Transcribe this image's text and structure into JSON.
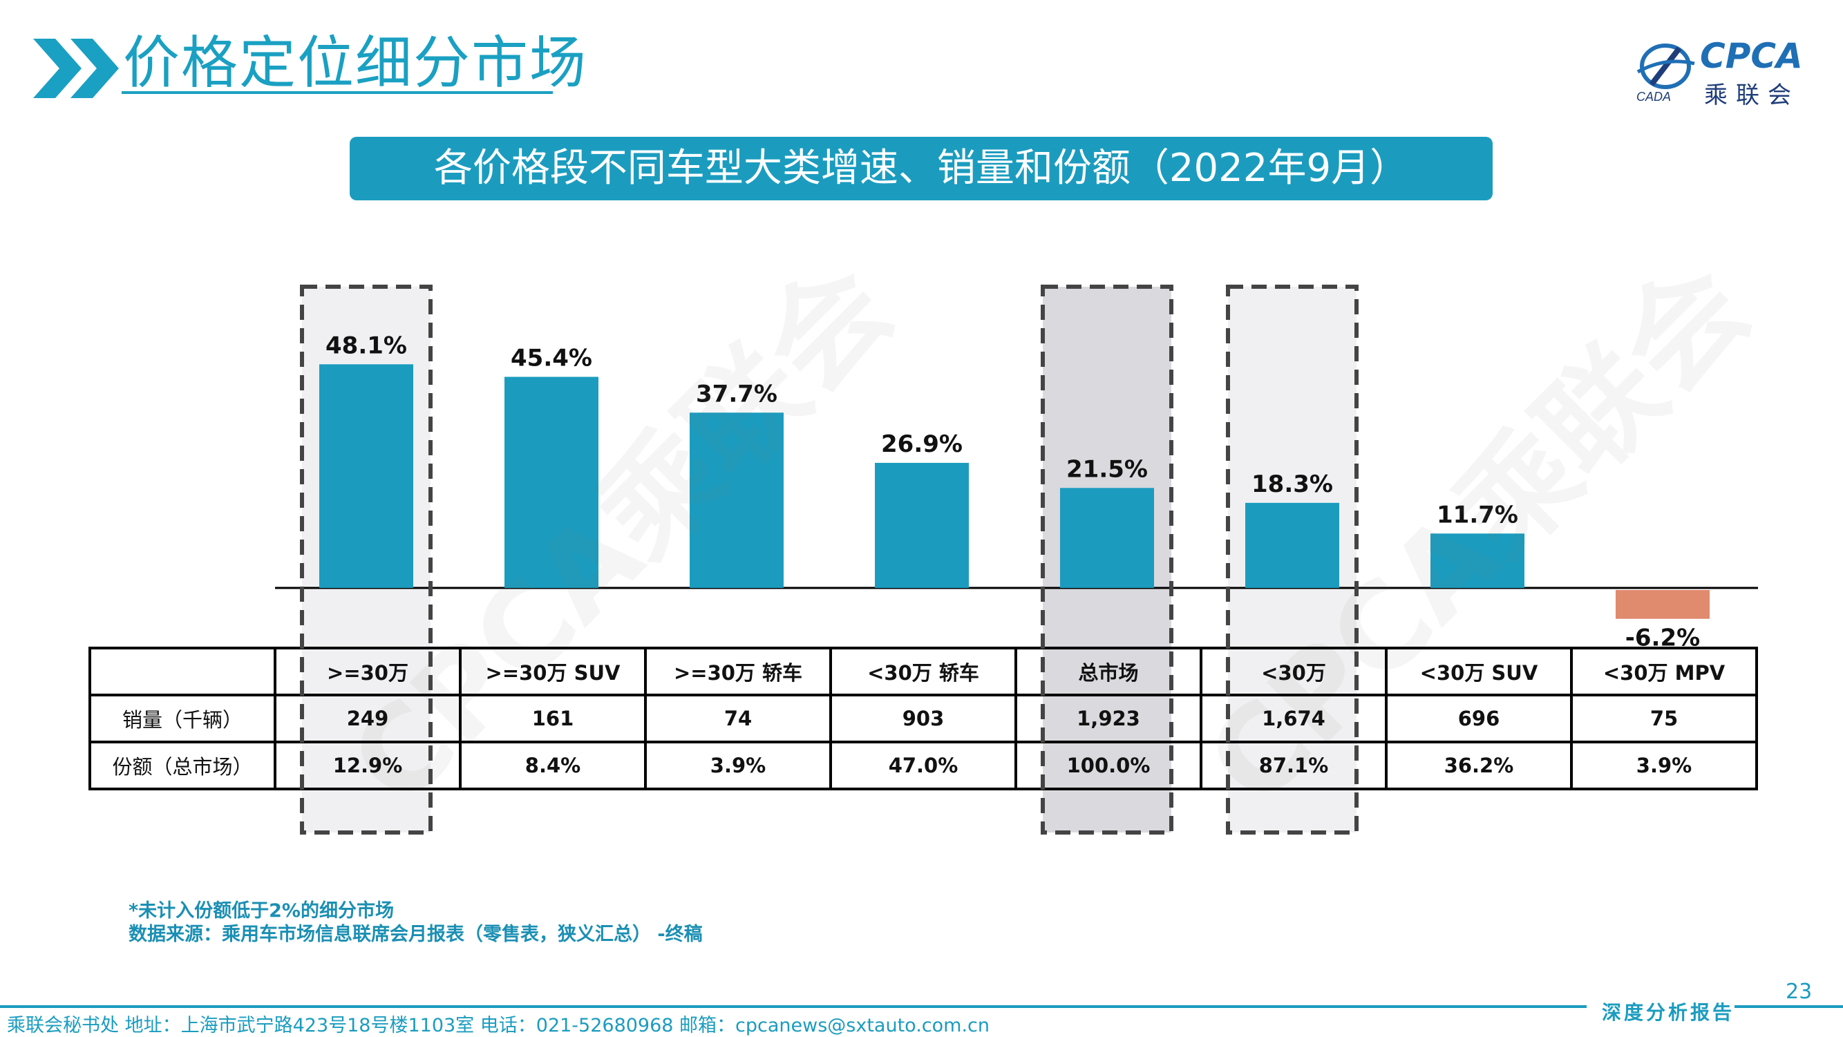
{
  "header": {
    "section_title": "价格定位细分市场",
    "logo_en": "CPCA",
    "logo_cn": "乘联会"
  },
  "banner": {
    "title": "各价格段不同车型大类增速、销量和份额（2022年9月）"
  },
  "watermark_text": "CPCA乘联会",
  "chart_data": {
    "type": "bar",
    "categories": [
      ">=30万",
      ">=30万 SUV",
      ">=30万 轿车",
      "<30万 轿车",
      "总市场",
      "<30万",
      "<30万 SUV",
      "<30万 MPV"
    ],
    "values": [
      48.1,
      45.4,
      37.7,
      26.9,
      21.5,
      18.3,
      11.7,
      -6.2
    ],
    "value_labels": [
      "48.1%",
      "45.4%",
      "37.7%",
      "26.9%",
      "21.5%",
      "18.3%",
      "11.7%",
      "-6.2%"
    ],
    "ylim": [
      -10,
      60
    ],
    "highlighted_categories": [
      ">=30万",
      "总市场",
      "<30万"
    ],
    "colors": {
      "positive": "#1b9cbf",
      "negative": "#e08a6e",
      "highlight_fill": "#f0f0f2",
      "highlight_fill_dark": "#d9d9de"
    },
    "title": "",
    "xlabel": "",
    "ylabel": ""
  },
  "table": {
    "corner": "",
    "columns": [
      ">=30万",
      ">=30万 SUV",
      ">=30万 轿车",
      "<30万 轿车",
      "总市场",
      "<30万",
      "<30万 SUV",
      "<30万 MPV"
    ],
    "rows": [
      {
        "label": "销量（千辆）",
        "values": [
          "249",
          "161",
          "74",
          "903",
          "1,923",
          "1,674",
          "696",
          "75"
        ]
      },
      {
        "label": "份额（总市场）",
        "values": [
          "12.9%",
          "8.4%",
          "3.9%",
          "47.0%",
          "100.0%",
          "87.1%",
          "36.2%",
          "3.9%"
        ]
      }
    ]
  },
  "notes": {
    "line1": "*未计入份额低于2%的细分市场",
    "line2": "数据来源：乘用车市场信息联席会月报表（零售表，狭义汇总） -终稿"
  },
  "footer": {
    "page_number": "23",
    "report_label": "深度分析报告",
    "contact": "乘联会秘书处   地址：上海市武宁路423号18号楼1103室   电话：021-52680968   邮箱：cpcanews@sxtauto.com.cn"
  }
}
